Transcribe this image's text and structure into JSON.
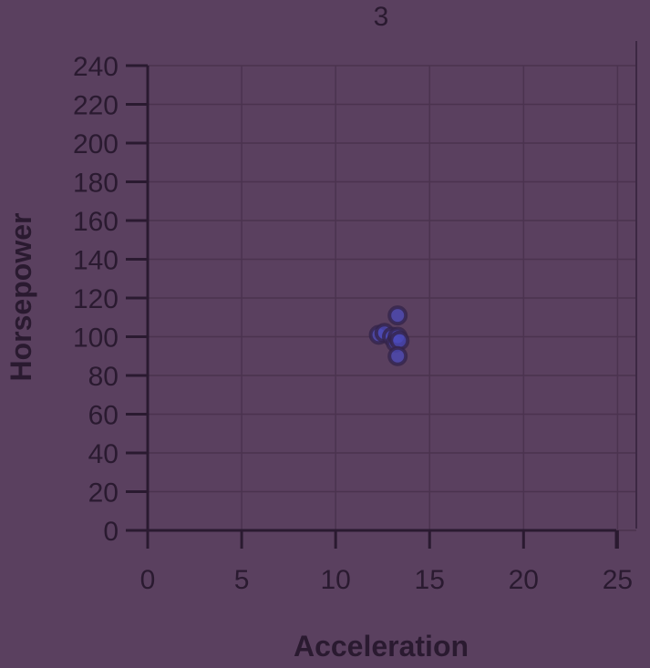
{
  "colors": {
    "background": "#5a405f",
    "axis": "#2a1a30",
    "grid": "#4b334f",
    "text": "#2a1a30",
    "point_fill": "#4b49b8",
    "point_stroke": "#34244a"
  },
  "chart_data": {
    "type": "scatter",
    "title": "3",
    "xlabel": "Acceleration",
    "ylabel": "Horsepower",
    "xlim": [
      0,
      26
    ],
    "ylim": [
      0,
      240
    ],
    "xticks": [
      0,
      5,
      10,
      15,
      20,
      25
    ],
    "yticks": [
      0,
      20,
      40,
      60,
      80,
      100,
      120,
      140,
      160,
      180,
      200,
      220,
      240
    ],
    "grid": true,
    "points": [
      {
        "x": 12.3,
        "y": 101
      },
      {
        "x": 12.6,
        "y": 102
      },
      {
        "x": 13.0,
        "y": 100
      },
      {
        "x": 13.2,
        "y": 97
      },
      {
        "x": 13.3,
        "y": 111
      },
      {
        "x": 13.3,
        "y": 100
      },
      {
        "x": 13.4,
        "y": 98
      },
      {
        "x": 13.3,
        "y": 90
      }
    ]
  }
}
